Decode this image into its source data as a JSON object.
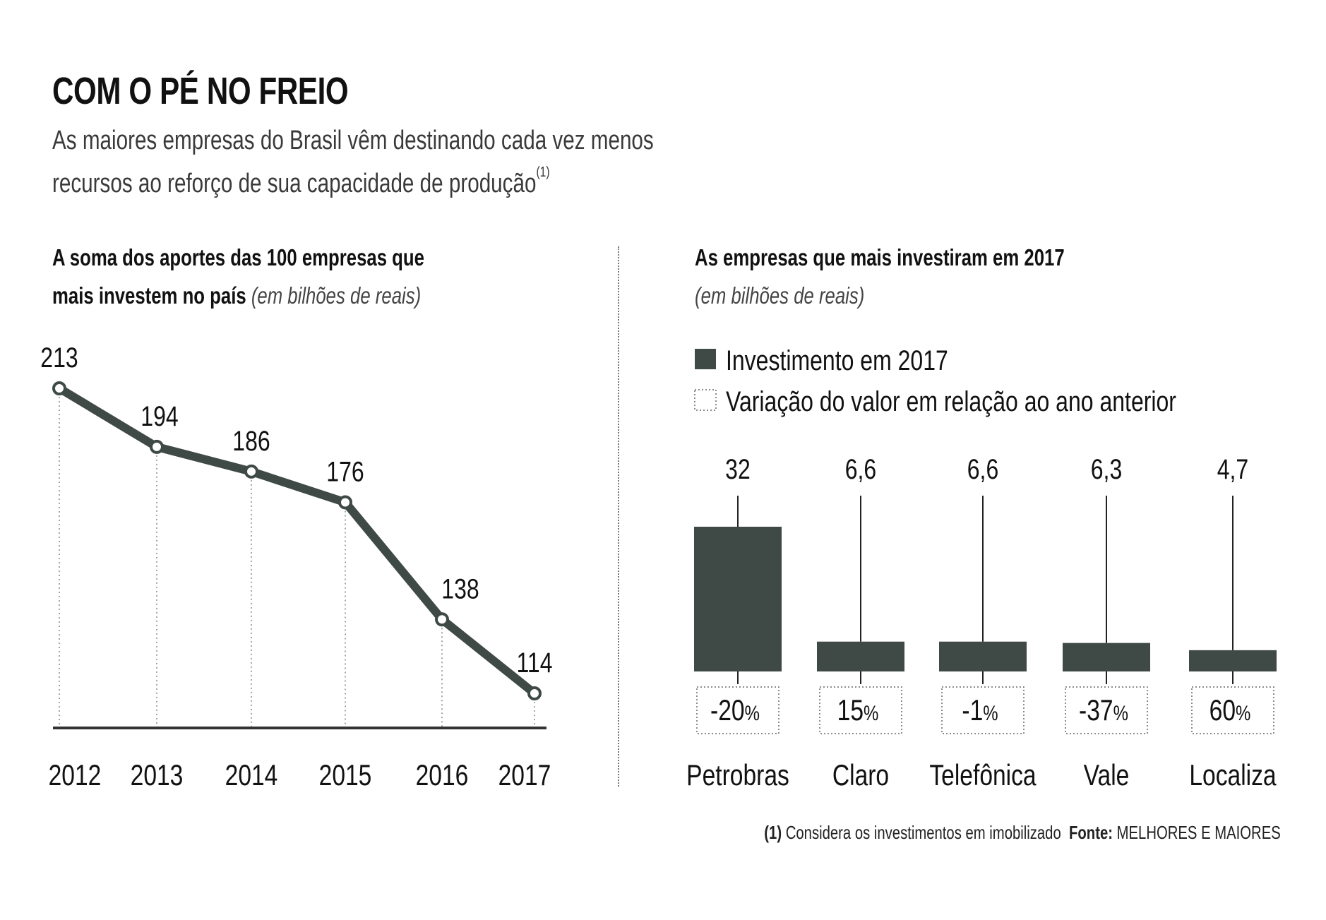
{
  "header": {
    "title": "COM O PÉ NO FREIO",
    "subtitle_line1": "As maiores empresas do Brasil vêm destinando cada vez menos",
    "subtitle_line2": "recursos ao reforço de sua capacidade de produção",
    "subtitle_note_marker": "(1)"
  },
  "colors": {
    "bar": "#3f4a46",
    "line": "#3f4a46",
    "text": "#111111",
    "subtitle": "#3a3a3a",
    "gridline": "#888888"
  },
  "footer": {
    "note_marker": "(1)",
    "note_text": "Considera os investimentos em imobilizado",
    "source_label": "Fonte:",
    "source_text": "MELHORES E MAIORES"
  },
  "chart_data": [
    {
      "type": "line",
      "title_bold_line1": "A soma dos aportes das 100 empresas que",
      "title_bold_line2": "mais investem no país",
      "title_unit": "(em bilhões de reais)",
      "xlabel": "",
      "ylabel": "",
      "categories": [
        "2012",
        "2013",
        "2014",
        "2015",
        "2016",
        "2017"
      ],
      "values": [
        213,
        194,
        186,
        176,
        138,
        114
      ],
      "data_labels": [
        "213",
        "194",
        "186",
        "176",
        "138",
        "114"
      ],
      "ylim": [
        114,
        213
      ],
      "grid": "vertical dotted drop lines",
      "legend": "none"
    },
    {
      "type": "bar",
      "title": "As empresas que mais investiram em 2017",
      "title_unit": "(em bilhões de reais)",
      "legend": "top-left",
      "legend_items": [
        {
          "label": "Investimento em 2017",
          "style": "solid"
        },
        {
          "label": "Variação do valor em relação ao ano anterior",
          "style": "dotted-box"
        }
      ],
      "categories": [
        "Petrobras",
        "Claro",
        "Telefônica",
        "Vale",
        "Localiza"
      ],
      "series": [
        {
          "name": "Investimento em 2017",
          "values": [
            32,
            6.6,
            6.6,
            6.3,
            4.7
          ],
          "data_labels": [
            "32",
            "6,6",
            "6,6",
            "6,3",
            "4,7"
          ]
        },
        {
          "name": "Variação do valor em relação ao ano anterior",
          "values": [
            -20,
            15,
            -1,
            -37,
            60
          ],
          "data_labels": [
            "-20",
            "15",
            "-1",
            "-37",
            "60"
          ],
          "unit": "%"
        }
      ],
      "ylim": [
        0,
        32
      ]
    }
  ]
}
